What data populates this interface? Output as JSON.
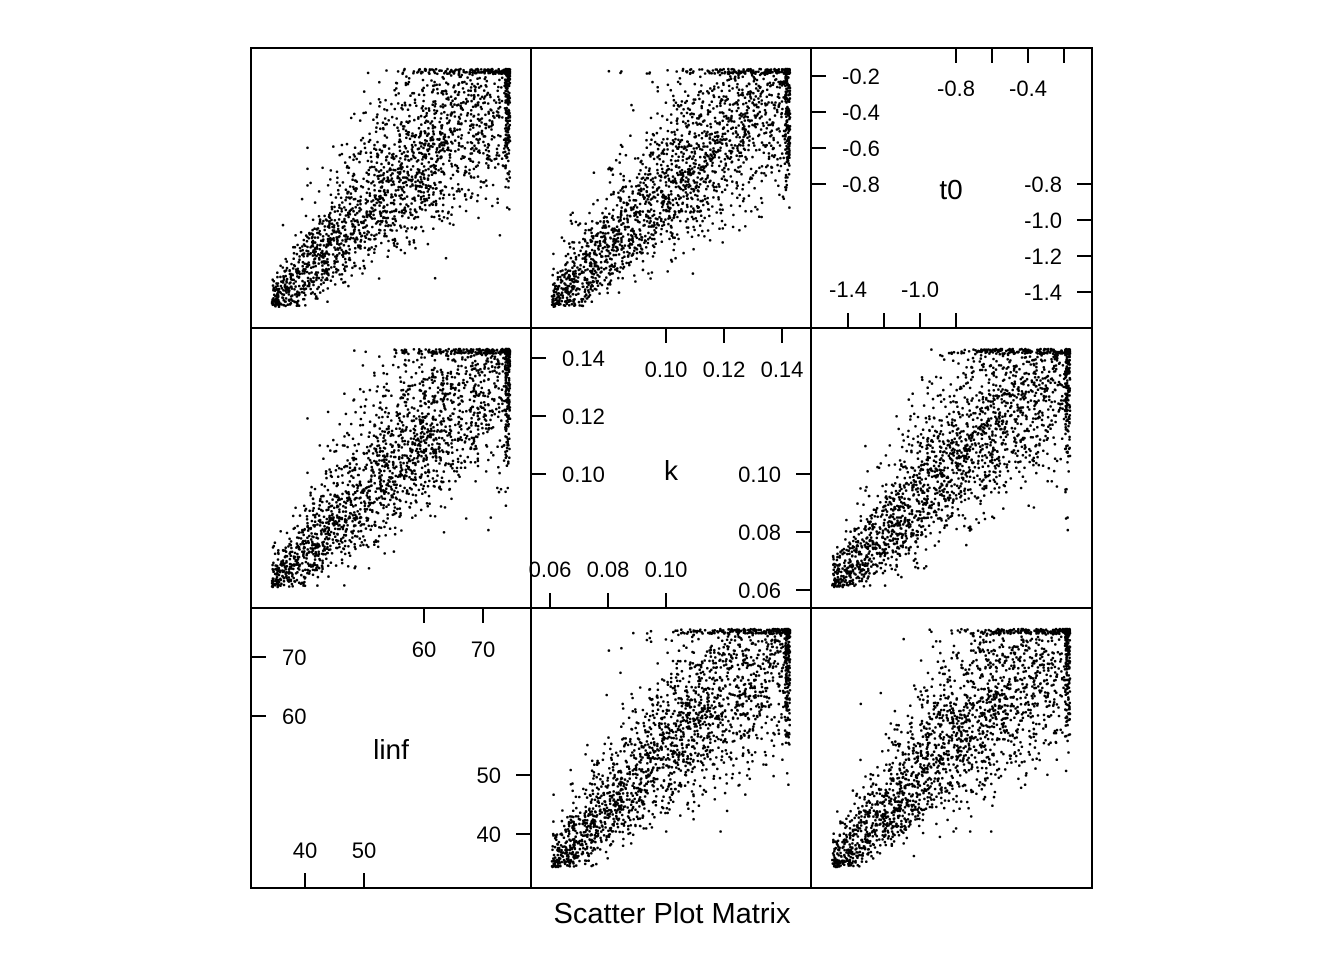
{
  "chart_data": {
    "type": "scatter",
    "title": "Scatter Plot Matrix",
    "variables": [
      {
        "name": "linf",
        "range": [
          31.5,
          76.5
        ],
        "lower_ticks": [
          40,
          50
        ],
        "upper_ticks": [
          60,
          70
        ]
      },
      {
        "name": "k",
        "range": [
          0.053,
          0.149
        ],
        "lower_ticks": [
          0.06,
          0.08,
          0.1
        ],
        "upper_ticks": [
          0.1,
          0.12,
          0.14
        ]
      },
      {
        "name": "t0",
        "range": [
          -1.5,
          -0.05
        ],
        "lower_ticks": [
          -1.4,
          -1.0
        ],
        "upper_ticks": [
          -0.8,
          -0.4
        ],
        "left_tick_labels": [
          -0.2,
          -0.4,
          -0.6,
          -0.8
        ],
        "right_tick_labels": [
          -0.8,
          -1.0,
          -1.2,
          -1.4
        ]
      }
    ],
    "tick_labels": {
      "linf": {
        "bottom": [
          "40",
          "50"
        ],
        "top": [
          "60",
          "70"
        ],
        "left": [
          "70",
          "60"
        ],
        "right": [
          "50",
          "40"
        ]
      },
      "k": {
        "bottom": [
          "0.06",
          "0.08",
          "0.10"
        ],
        "top": [
          "0.10",
          "0.12",
          "0.14"
        ],
        "left": [
          "0.14",
          "0.12",
          "0.10"
        ],
        "right": [
          "0.10",
          "0.08",
          "0.06"
        ]
      },
      "t0": {
        "bottom": [
          "-1.4",
          "-1.0"
        ],
        "top": [
          "-0.8",
          "-0.4"
        ],
        "left": [
          "-0.2",
          "-0.4",
          "-0.6",
          "-0.8"
        ],
        "right": [
          "-0.8",
          "-1.0",
          "-1.2",
          "-1.4"
        ]
      }
    },
    "panels": [
      {
        "x": "k",
        "y": "linf",
        "points": 6000
      },
      {
        "x": "t0",
        "y": "linf",
        "points": 6000
      },
      {
        "x": "linf",
        "y": "k",
        "points": 6000
      },
      {
        "x": "t0",
        "y": "k",
        "points": 6000
      },
      {
        "x": "linf",
        "y": "t0",
        "points": 6000
      },
      {
        "x": "k",
        "y": "t0",
        "points": 6000
      }
    ],
    "correlation": "positive, fan-shaped spread widening toward higher values",
    "marker": "small filled dots",
    "color": "#000000",
    "grid": false,
    "legend": "none"
  }
}
